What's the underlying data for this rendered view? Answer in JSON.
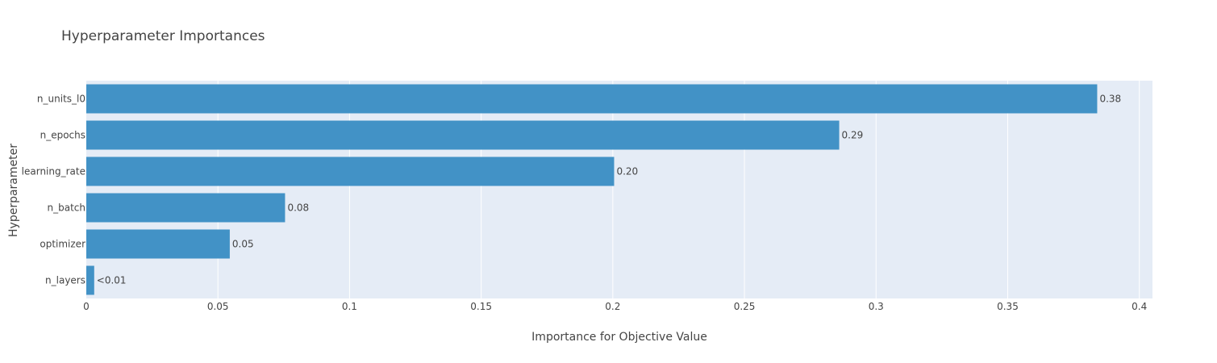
{
  "chart_data": {
    "type": "bar",
    "orientation": "horizontal",
    "title": "Hyperparameter Importances",
    "xlabel": "Importance for Objective Value",
    "ylabel": "Hyperparameter",
    "categories": [
      "n_units_l0",
      "n_epochs",
      "learning_rate",
      "n_batch",
      "optimizer",
      "n_layers"
    ],
    "values": [
      0.384,
      0.286,
      0.2005,
      0.0755,
      0.0545,
      0.003
    ],
    "bar_labels": [
      "0.38",
      "0.29",
      "0.20",
      "0.08",
      "0.05",
      "<0.01"
    ],
    "xlim": [
      0,
      0.405
    ],
    "xticks": [
      0,
      0.05,
      0.1,
      0.15,
      0.2,
      0.25,
      0.3,
      0.35,
      0.4
    ],
    "xtick_labels": [
      "0",
      "0.05",
      "0.1",
      "0.15",
      "0.2",
      "0.25",
      "0.3",
      "0.35",
      "0.4"
    ],
    "grid": true,
    "legend": false
  },
  "colors": {
    "bar": "#4292c6",
    "plot_background": "#e5ecf6",
    "grid": "#ffffff",
    "text": "#444444"
  }
}
